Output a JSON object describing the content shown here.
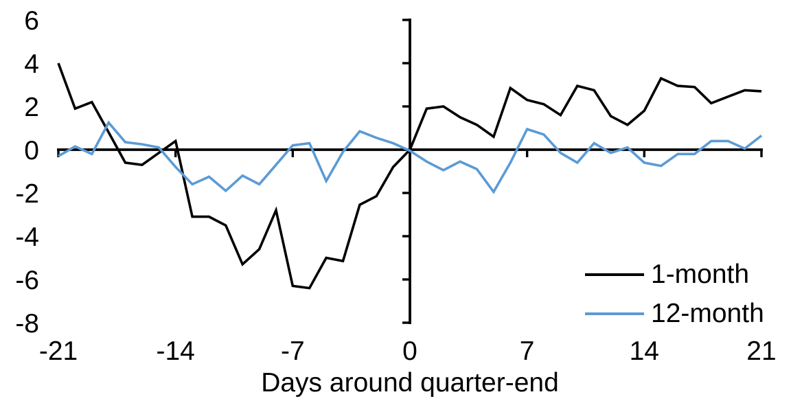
{
  "chart_data": {
    "type": "line",
    "title": "",
    "xlabel": "Days around quarter-end",
    "ylabel": "",
    "x": [
      -21,
      -20,
      -19,
      -18,
      -17,
      -16,
      -15,
      -14,
      -13,
      -12,
      -11,
      -10,
      -9,
      -8,
      -7,
      -6,
      -5,
      -4,
      -3,
      -2,
      -1,
      0,
      1,
      2,
      3,
      4,
      5,
      6,
      7,
      8,
      9,
      10,
      11,
      12,
      13,
      14,
      15,
      16,
      17,
      18,
      19,
      20,
      21
    ],
    "series": [
      {
        "name": "1-month",
        "color": "#000000",
        "values": [
          4.0,
          1.9,
          2.2,
          0.8,
          -0.6,
          -0.7,
          -0.15,
          0.4,
          -3.1,
          -3.1,
          -3.5,
          -5.3,
          -4.6,
          -2.8,
          -6.3,
          -6.4,
          -5.0,
          -5.15,
          -2.55,
          -2.15,
          -0.8,
          0.0,
          1.9,
          2.0,
          1.5,
          1.15,
          0.6,
          2.85,
          2.3,
          2.1,
          1.6,
          2.95,
          2.75,
          1.55,
          1.15,
          1.8,
          3.3,
          2.95,
          2.9,
          2.15,
          2.45,
          2.75,
          2.7
        ]
      },
      {
        "name": "12-month",
        "color": "#5B9BD5",
        "values": [
          -0.3,
          0.15,
          -0.2,
          1.25,
          0.35,
          0.25,
          0.1,
          -0.8,
          -1.6,
          -1.25,
          -1.9,
          -1.2,
          -1.6,
          -0.7,
          0.2,
          0.3,
          -1.45,
          -0.1,
          0.85,
          0.55,
          0.3,
          -0.05,
          -0.55,
          -0.95,
          -0.55,
          -0.9,
          -1.95,
          -0.6,
          0.95,
          0.7,
          -0.15,
          -0.6,
          0.3,
          -0.15,
          0.1,
          -0.6,
          -0.75,
          -0.2,
          -0.2,
          0.4,
          0.4,
          0.05,
          0.65
        ]
      }
    ],
    "xticks": [
      -21,
      -14,
      -7,
      0,
      7,
      14,
      21
    ],
    "yticks": [
      6,
      4,
      2,
      0,
      -2,
      -4,
      -6,
      -8
    ],
    "xlim": [
      -21,
      21
    ],
    "ylim": [
      -8,
      6
    ],
    "grid": false,
    "legend_position": "bottom-right",
    "axis_color": "#000000"
  }
}
